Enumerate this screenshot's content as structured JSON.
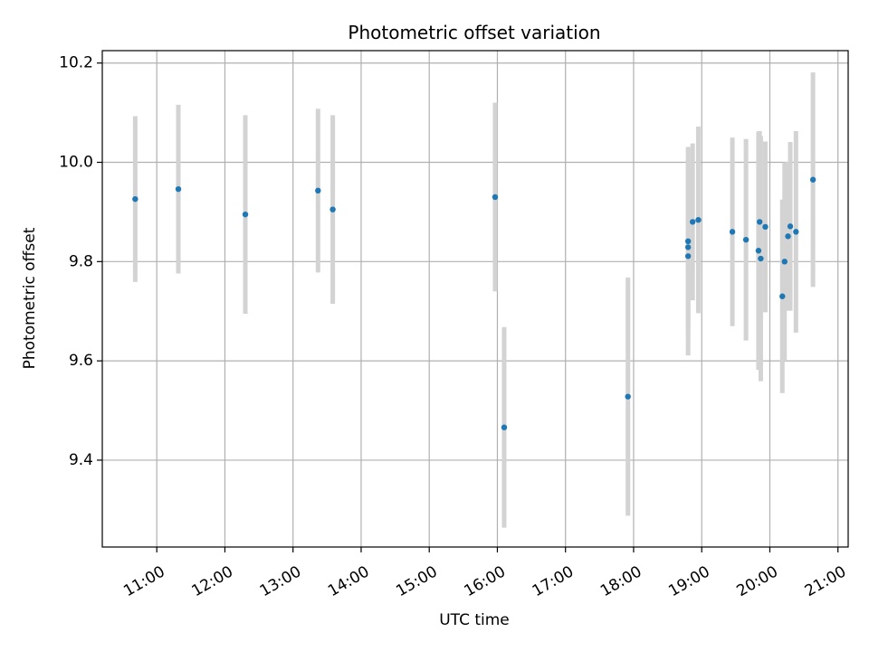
{
  "chart_data": {
    "type": "scatter",
    "title": "Photometric offset variation",
    "xlabel": "UTC time",
    "ylabel": "Photometric offset",
    "x_ticks": [
      "11:00",
      "12:00",
      "13:00",
      "14:00",
      "15:00",
      "16:00",
      "17:00",
      "18:00",
      "19:00",
      "20:00",
      "21:00"
    ],
    "y_ticks": [
      "9.4",
      "9.6",
      "9.8",
      "10.0",
      "10.2"
    ],
    "xlim": [
      "10:12",
      "21:09"
    ],
    "ylim": [
      9.225,
      10.225
    ],
    "grid": true,
    "colors": {
      "points": "#1f77b4",
      "errorbars": "#d3d3d3",
      "grid": "#b0b0b0"
    },
    "points": [
      {
        "x": "10:41",
        "y": 9.926,
        "err": 0.167
      },
      {
        "x": "11:19",
        "y": 9.946,
        "err": 0.17
      },
      {
        "x": "12:18",
        "y": 9.895,
        "err": 0.2
      },
      {
        "x": "13:22",
        "y": 9.943,
        "err": 0.165
      },
      {
        "x": "13:35",
        "y": 9.905,
        "err": 0.19
      },
      {
        "x": "15:58",
        "y": 9.93,
        "err": 0.19
      },
      {
        "x": "16:06",
        "y": 9.466,
        "err": 0.202
      },
      {
        "x": "17:55",
        "y": 9.528,
        "err": 0.24
      },
      {
        "x": "18:48",
        "y": 9.841,
        "err": 0.19
      },
      {
        "x": "18:48",
        "y": 9.829,
        "err": 0.16
      },
      {
        "x": "18:48",
        "y": 9.811,
        "err": 0.2
      },
      {
        "x": "18:52",
        "y": 9.88,
        "err": 0.158
      },
      {
        "x": "18:57",
        "y": 9.884,
        "err": 0.188
      },
      {
        "x": "19:27",
        "y": 9.86,
        "err": 0.19
      },
      {
        "x": "19:39",
        "y": 9.844,
        "err": 0.203
      },
      {
        "x": "19:50",
        "y": 9.822,
        "err": 0.24
      },
      {
        "x": "19:51",
        "y": 9.88,
        "err": 0.183
      },
      {
        "x": "19:52",
        "y": 9.806,
        "err": 0.247
      },
      {
        "x": "19:56",
        "y": 9.87,
        "err": 0.172
      },
      {
        "x": "20:11",
        "y": 9.73,
        "err": 0.195
      },
      {
        "x": "20:13",
        "y": 9.8,
        "err": 0.2
      },
      {
        "x": "20:16",
        "y": 9.851,
        "err": 0.15
      },
      {
        "x": "20:18",
        "y": 9.871,
        "err": 0.17
      },
      {
        "x": "20:23",
        "y": 9.86,
        "err": 0.203
      },
      {
        "x": "20:38",
        "y": 9.965,
        "err": 0.216
      }
    ]
  }
}
